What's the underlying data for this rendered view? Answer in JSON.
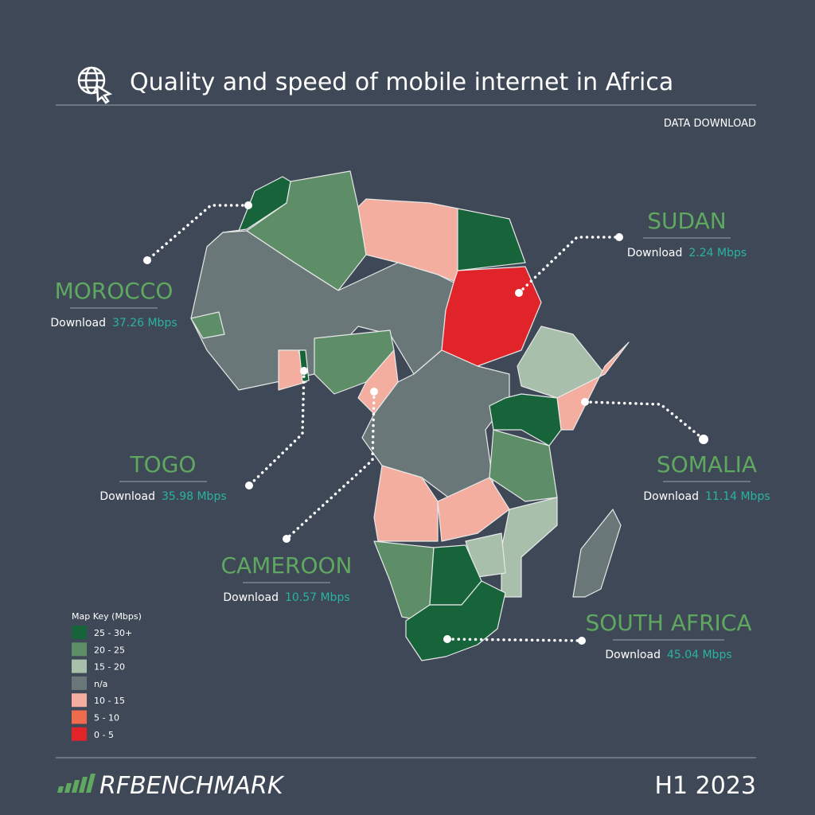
{
  "header": {
    "title": "Quality and speed of mobile internet in Africa",
    "subtitle": "DATA DOWNLOAD"
  },
  "callouts": [
    {
      "country": "MOROCCO",
      "label": "Download",
      "speed": "37.26 Mbps"
    },
    {
      "country": "SUDAN",
      "label": "Download",
      "speed": "2.24 Mbps"
    },
    {
      "country": "TOGO",
      "label": "Download",
      "speed": "35.98 Mbps"
    },
    {
      "country": "CAMEROON",
      "label": "Download",
      "speed": "10.57 Mbps"
    },
    {
      "country": "SOMALIA",
      "label": "Download",
      "speed": "11.14 Mbps"
    },
    {
      "country": "SOUTH AFRICA",
      "label": "Download",
      "speed": "45.04 Mbps"
    }
  ],
  "legend": {
    "title": "Map Key (Mbps)",
    "items": [
      {
        "label": "25 - 30+",
        "color": "#17643a"
      },
      {
        "label": "20 - 25",
        "color": "#5e8e68"
      },
      {
        "label": "15 - 20",
        "color": "#a7bfab"
      },
      {
        "label": "n/a",
        "color": "#6a7778"
      },
      {
        "label": "10 - 15",
        "color": "#f3aea0"
      },
      {
        "label": "5 - 10",
        "color": "#ee6b4e"
      },
      {
        "label": "0 - 5",
        "color": "#e1232a"
      }
    ]
  },
  "footer": {
    "brand": "RFBENCHMARK",
    "period": "H1 2023"
  }
}
